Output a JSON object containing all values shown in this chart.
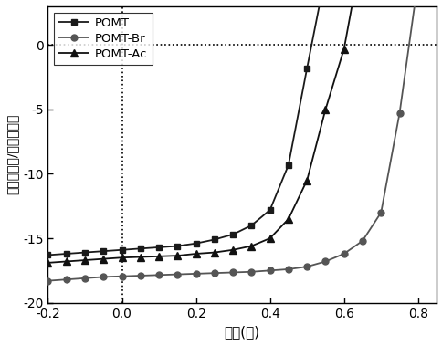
{
  "title": "",
  "xlabel": "电压(伏)",
  "ylabel": "电流（毫安/平方厘米）",
  "xlim": [
    -0.2,
    0.85
  ],
  "ylim": [
    -20,
    3
  ],
  "xticks": [
    -0.2,
    0.0,
    0.2,
    0.4,
    0.6,
    0.8
  ],
  "yticks": [
    -20,
    -15,
    -10,
    -5,
    0
  ],
  "background": "#ffffff",
  "series": [
    {
      "name": "POMT",
      "color": "#1a1a1a",
      "marker": "s",
      "x": [
        -0.2,
        -0.15,
        -0.1,
        -0.05,
        0.0,
        0.05,
        0.1,
        0.15,
        0.2,
        0.25,
        0.3,
        0.35,
        0.4,
        0.45,
        0.5,
        0.55,
        0.6
      ],
      "y": [
        -16.3,
        -16.2,
        -16.1,
        -16.0,
        -15.9,
        -15.8,
        -15.7,
        -15.6,
        -15.4,
        -15.1,
        -14.7,
        -14.0,
        -12.8,
        -9.3,
        -1.8,
        5.5,
        14.0
      ]
    },
    {
      "name": "POMT-Br",
      "color": "#555555",
      "marker": "o",
      "x": [
        -0.2,
        -0.15,
        -0.1,
        -0.05,
        0.0,
        0.05,
        0.1,
        0.15,
        0.2,
        0.25,
        0.3,
        0.35,
        0.4,
        0.45,
        0.5,
        0.55,
        0.6,
        0.65,
        0.7,
        0.75,
        0.8
      ],
      "y": [
        -18.3,
        -18.2,
        -18.1,
        -18.0,
        -17.95,
        -17.9,
        -17.85,
        -17.8,
        -17.75,
        -17.7,
        -17.65,
        -17.6,
        -17.5,
        -17.4,
        -17.2,
        -16.8,
        -16.2,
        -15.2,
        -13.0,
        -5.3,
        5.0
      ]
    },
    {
      "name": "POMT-Ac",
      "color": "#111111",
      "marker": "^",
      "x": [
        -0.2,
        -0.15,
        -0.1,
        -0.05,
        0.0,
        0.05,
        0.1,
        0.15,
        0.2,
        0.25,
        0.3,
        0.35,
        0.4,
        0.45,
        0.5,
        0.55,
        0.6,
        0.65,
        0.7
      ],
      "y": [
        -16.9,
        -16.8,
        -16.7,
        -16.6,
        -16.5,
        -16.45,
        -16.4,
        -16.35,
        -16.2,
        -16.1,
        -15.9,
        -15.6,
        -15.0,
        -13.5,
        -10.5,
        -5.0,
        -0.3,
        7.5,
        18.0
      ]
    }
  ],
  "legend_loc": "upper left",
  "dashed_hline_y": 0,
  "dashed_vline_x": 0
}
